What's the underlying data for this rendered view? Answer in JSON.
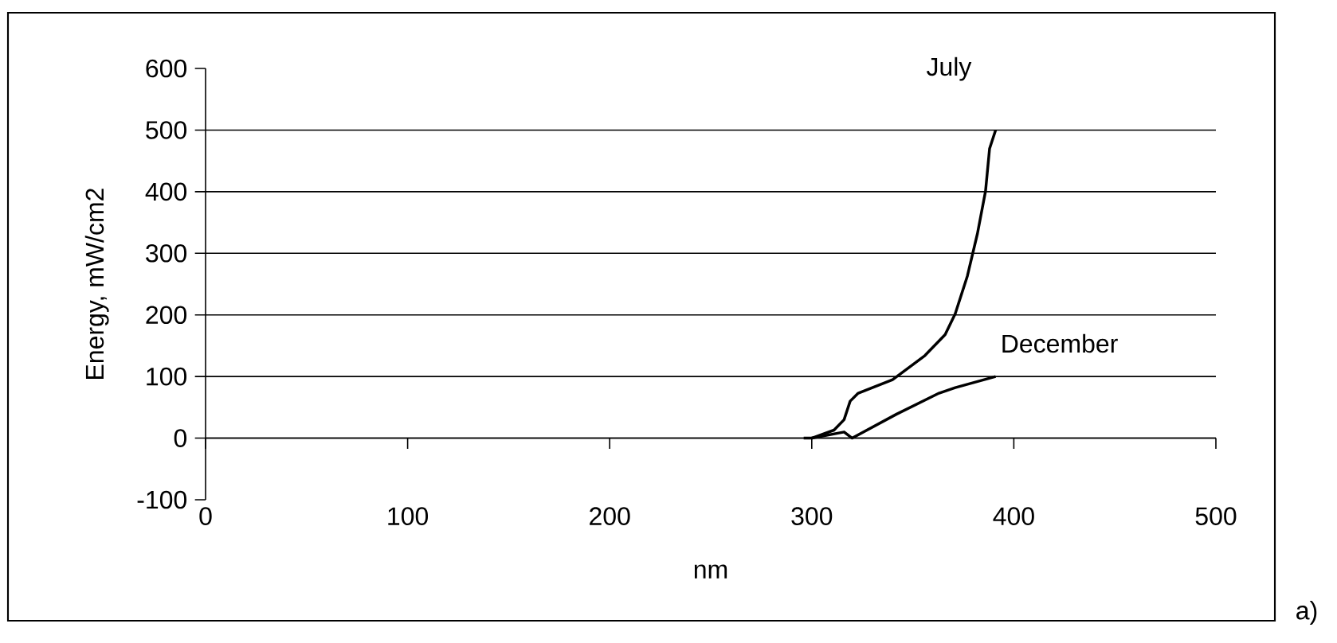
{
  "chart_data": {
    "type": "line",
    "xlabel": "nm",
    "ylabel": "Energy, mW/cm2",
    "xlim": [
      0,
      500
    ],
    "ylim": [
      -100,
      600
    ],
    "xticks": [
      0,
      100,
      200,
      300,
      400,
      500
    ],
    "yticks": [
      -100,
      0,
      100,
      200,
      300,
      400,
      500,
      600
    ],
    "grid": "y",
    "annotations": [
      "a)"
    ],
    "series": [
      {
        "name": "July",
        "color": "#000000",
        "x": [
          296,
          300,
          311,
          316,
          319,
          323,
          340,
          356,
          366,
          371,
          377,
          382,
          386,
          388,
          391
        ],
        "values": [
          0,
          0,
          13,
          30,
          60,
          73,
          95,
          134,
          168,
          202,
          263,
          332,
          401,
          470,
          500
        ]
      },
      {
        "name": "December",
        "color": "#000000",
        "x": [
          300,
          316,
          320,
          342,
          363,
          371,
          391
        ],
        "values": [
          0,
          10,
          0,
          39,
          73,
          82,
          100
        ]
      }
    ]
  }
}
